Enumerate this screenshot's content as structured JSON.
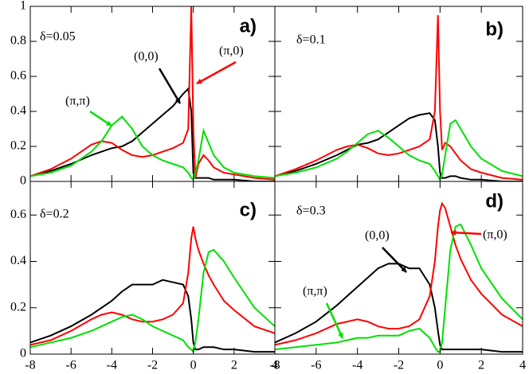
{
  "chart_data": [
    {
      "type": "line",
      "panel": "a)",
      "label": "δ=0.05",
      "xlim": [
        -8,
        4
      ],
      "ylim": [
        0,
        1
      ],
      "xticks": [
        -8,
        -6,
        -4,
        -2,
        0,
        2,
        4
      ],
      "yticks": [
        0,
        0.2,
        0.4,
        0.6,
        0.8,
        1
      ],
      "show_xtick_labels": false,
      "show_ytick_labels": true,
      "x": [
        -8,
        -7,
        -6,
        -5,
        -4.5,
        -4,
        -3.5,
        -3,
        -2.5,
        -2,
        -1.5,
        -1,
        -0.5,
        -0.25,
        -0.1,
        0,
        0.1,
        0.25,
        0.5,
        0.75,
        1,
        1.5,
        2,
        3,
        4
      ],
      "series": [
        {
          "color": "#000000",
          "values": [
            0.03,
            0.06,
            0.1,
            0.15,
            0.17,
            0.19,
            0.2,
            0.23,
            0.28,
            0.33,
            0.38,
            0.43,
            0.5,
            0.53,
            0.4,
            0.05,
            0.02,
            0.02,
            0.02,
            0.02,
            0.01,
            0.01,
            0.01,
            0,
            0
          ]
        },
        {
          "color": "#ff0000",
          "values": [
            0.03,
            0.07,
            0.13,
            0.21,
            0.23,
            0.22,
            0.18,
            0.15,
            0.14,
            0.15,
            0.17,
            0.19,
            0.22,
            0.3,
            1.0,
            0.3,
            0.02,
            0.1,
            0.15,
            0.12,
            0.08,
            0.05,
            0.04,
            0.02,
            0.01
          ]
        },
        {
          "color": "#00e000",
          "values": [
            0.03,
            0.05,
            0.09,
            0.17,
            0.23,
            0.32,
            0.37,
            0.3,
            0.2,
            0.15,
            0.12,
            0.1,
            0.08,
            0.05,
            0.02,
            0.01,
            0.05,
            0.12,
            0.29,
            0.22,
            0.15,
            0.08,
            0.05,
            0.03,
            0.02
          ]
        }
      ],
      "annotations": [
        {
          "text": "(0,0)",
          "color": "#000000"
        },
        {
          "text": "(π,0)",
          "color": "#ff0000"
        },
        {
          "text": "(π,π)",
          "color": "#00e000"
        }
      ]
    },
    {
      "type": "line",
      "panel": "b)",
      "label": "δ=0.1",
      "xlim": [
        -8,
        4
      ],
      "ylim": [
        0,
        1
      ],
      "xticks": [
        -8,
        -6,
        -4,
        -2,
        0,
        2,
        4
      ],
      "yticks": [
        0,
        0.2,
        0.4,
        0.6,
        0.8,
        1
      ],
      "show_xtick_labels": false,
      "show_ytick_labels": false,
      "x": [
        -8,
        -7,
        -6,
        -5,
        -4.5,
        -4,
        -3.5,
        -3,
        -2.5,
        -2,
        -1.5,
        -1,
        -0.5,
        -0.25,
        -0.1,
        0,
        0.1,
        0.25,
        0.5,
        0.75,
        1,
        1.5,
        2,
        3,
        4
      ],
      "series": [
        {
          "color": "#000000",
          "values": [
            0.03,
            0.06,
            0.1,
            0.15,
            0.18,
            0.21,
            0.22,
            0.24,
            0.28,
            0.32,
            0.36,
            0.38,
            0.39,
            0.35,
            0.2,
            0.05,
            0.02,
            0.02,
            0.03,
            0.03,
            0.02,
            0.01,
            0.01,
            0,
            0
          ]
        },
        {
          "color": "#ff0000",
          "values": [
            0.03,
            0.07,
            0.12,
            0.18,
            0.2,
            0.21,
            0.19,
            0.16,
            0.15,
            0.16,
            0.18,
            0.2,
            0.24,
            0.4,
            0.95,
            0.4,
            0.18,
            0.22,
            0.2,
            0.16,
            0.12,
            0.07,
            0.05,
            0.02,
            0.01
          ]
        },
        {
          "color": "#00e000",
          "values": [
            0.03,
            0.05,
            0.08,
            0.13,
            0.17,
            0.22,
            0.27,
            0.29,
            0.25,
            0.2,
            0.15,
            0.12,
            0.1,
            0.06,
            0.03,
            0.01,
            0.04,
            0.15,
            0.33,
            0.35,
            0.3,
            0.2,
            0.13,
            0.06,
            0.03
          ]
        }
      ]
    },
    {
      "type": "line",
      "panel": "c)",
      "label": "δ=0.2",
      "xlim": [
        -8,
        4
      ],
      "ylim": [
        0,
        0.745
      ],
      "xticks": [
        -8,
        -6,
        -4,
        -2,
        0,
        2,
        4
      ],
      "yticks": [
        0,
        0.2,
        0.4,
        0.6
      ],
      "show_xtick_labels": true,
      "show_ytick_labels": true,
      "x": [
        -8,
        -7,
        -6,
        -5,
        -4.5,
        -4,
        -3.5,
        -3,
        -2.5,
        -2,
        -1.5,
        -1,
        -0.5,
        -0.25,
        -0.1,
        0,
        0.1,
        0.25,
        0.5,
        0.75,
        1,
        1.5,
        2,
        3,
        4
      ],
      "series": [
        {
          "color": "#000000",
          "values": [
            0.05,
            0.08,
            0.12,
            0.17,
            0.2,
            0.23,
            0.27,
            0.3,
            0.3,
            0.3,
            0.32,
            0.31,
            0.3,
            0.25,
            0.15,
            0.05,
            0.02,
            0.02,
            0.03,
            0.03,
            0.03,
            0.02,
            0.02,
            0.01,
            0.01
          ]
        },
        {
          "color": "#ff0000",
          "values": [
            0.04,
            0.06,
            0.1,
            0.15,
            0.17,
            0.18,
            0.17,
            0.15,
            0.14,
            0.14,
            0.15,
            0.17,
            0.22,
            0.35,
            0.5,
            0.55,
            0.5,
            0.45,
            0.39,
            0.34,
            0.3,
            0.23,
            0.19,
            0.12,
            0.09
          ]
        },
        {
          "color": "#00e000",
          "values": [
            0.03,
            0.05,
            0.07,
            0.1,
            0.12,
            0.14,
            0.16,
            0.17,
            0.15,
            0.12,
            0.1,
            0.08,
            0.06,
            0.03,
            0.02,
            0.01,
            0.05,
            0.15,
            0.35,
            0.44,
            0.45,
            0.4,
            0.33,
            0.2,
            0.12
          ]
        }
      ]
    },
    {
      "type": "line",
      "panel": "d)",
      "label": "δ=0.3",
      "xlim": [
        -8,
        4
      ],
      "ylim": [
        0,
        0.745
      ],
      "xticks": [
        -8,
        -6,
        -4,
        -2,
        0,
        2,
        4
      ],
      "yticks": [
        0,
        0.2,
        0.4,
        0.6
      ],
      "show_xtick_labels": true,
      "show_ytick_labels": false,
      "x": [
        -8,
        -7,
        -6,
        -5,
        -4.5,
        -4,
        -3.5,
        -3,
        -2.5,
        -2,
        -1.5,
        -1,
        -0.5,
        -0.25,
        -0.1,
        0,
        0.1,
        0.25,
        0.5,
        0.75,
        1,
        1.5,
        2,
        3,
        4
      ],
      "series": [
        {
          "color": "#000000",
          "values": [
            0.05,
            0.09,
            0.14,
            0.21,
            0.25,
            0.29,
            0.33,
            0.37,
            0.39,
            0.39,
            0.37,
            0.37,
            0.3,
            0.2,
            0.1,
            0.04,
            0.02,
            0.02,
            0.02,
            0.02,
            0.02,
            0.02,
            0.02,
            0.01,
            0.01
          ]
        },
        {
          "color": "#ff0000",
          "values": [
            0.04,
            0.06,
            0.09,
            0.13,
            0.14,
            0.15,
            0.14,
            0.12,
            0.11,
            0.11,
            0.12,
            0.15,
            0.25,
            0.4,
            0.55,
            0.62,
            0.65,
            0.63,
            0.55,
            0.47,
            0.41,
            0.32,
            0.26,
            0.17,
            0.12
          ]
        },
        {
          "color": "#00e000",
          "values": [
            0.02,
            0.03,
            0.04,
            0.05,
            0.06,
            0.07,
            0.07,
            0.08,
            0.08,
            0.08,
            0.1,
            0.11,
            0.07,
            0.03,
            0.01,
            0.01,
            0.05,
            0.2,
            0.45,
            0.55,
            0.56,
            0.47,
            0.37,
            0.24,
            0.15
          ]
        }
      ],
      "annotations": [
        {
          "text": "(0,0)",
          "color": "#000000"
        },
        {
          "text": "(π,0)",
          "color": "#ff0000"
        },
        {
          "text": "(π,π)",
          "color": "#00e000"
        }
      ]
    }
  ]
}
